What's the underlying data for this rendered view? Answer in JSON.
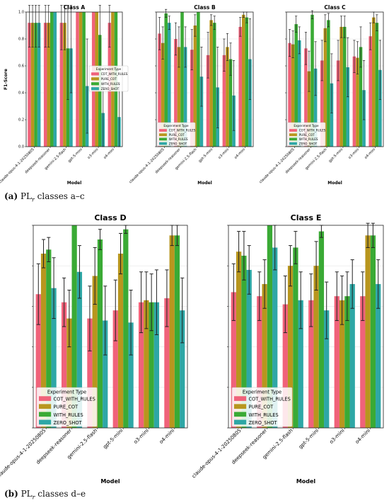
{
  "captions": {
    "a_label": "(a)",
    "a_text": "PL",
    "a_sub": "r",
    "a_rest": " classes a–c",
    "b_label": "(b)",
    "b_text": "PL",
    "b_sub": "r",
    "b_rest": " classes d–e"
  },
  "legend": {
    "title": "Experiment Type",
    "entries": [
      "COT_WITH_RULES",
      "PURE_COT",
      "WITH_RULES",
      "ZERO_SHOT"
    ]
  },
  "colors": {
    "COT_WITH_RULES": "#f0627a",
    "PURE_COT": "#b8961e",
    "WITH_RULES": "#3aaa35",
    "ZERO_SHOT": "#2ea7a6"
  },
  "chart_data": [
    {
      "type": "bar",
      "title": "Class A",
      "xlabel": "Model",
      "ylabel": "F1-Score",
      "ylim": [
        0,
        1.0
      ],
      "yticks": [
        "0.0",
        "0.2",
        "0.4",
        "0.6",
        "0.8",
        "1.0"
      ],
      "grid": true,
      "legend_position": "center-right",
      "categories": [
        "claude-opus-4-1-20250805",
        "deepseek-reasoner",
        "gemini-2.5-flash",
        "gpt-5-mini",
        "o3-mini",
        "o4-mini"
      ],
      "series": [
        {
          "name": "COT_WITH_RULES",
          "values": [
            0.92,
            0.92,
            0.92,
            1.0,
            1.0,
            0.92
          ],
          "err": [
            0.18,
            0.18,
            0.2,
            0.0,
            0.0,
            0.18
          ]
        },
        {
          "name": "PURE_COT",
          "values": [
            0.92,
            0.92,
            0.92,
            1.0,
            1.0,
            1.0
          ],
          "err": [
            0.18,
            0.18,
            0.2,
            0.0,
            0.0,
            0.0
          ]
        },
        {
          "name": "WITH_RULES",
          "values": [
            0.92,
            1.0,
            0.73,
            1.0,
            0.83,
            1.0
          ],
          "err": [
            0.18,
            0.0,
            0.38,
            0.0,
            0.25,
            0.0
          ]
        },
        {
          "name": "ZERO_SHOT",
          "values": [
            0.92,
            1.0,
            0.73,
            0.45,
            0.25,
            0.22
          ],
          "err": [
            0.18,
            0.0,
            0.33,
            0.35,
            0.3,
            0.25
          ]
        }
      ]
    },
    {
      "type": "bar",
      "title": "Class B",
      "xlabel": "Model",
      "ylabel": "",
      "ylim": [
        0,
        1.0
      ],
      "yticks": [],
      "grid": true,
      "legend_position": "lower-left",
      "categories": [
        "claude-opus-4-1-20250805",
        "deepseek-reasoner",
        "gemini-2.5-flash",
        "gpt-5-mini",
        "o3-mini",
        "o4-mini"
      ],
      "series": [
        {
          "name": "COT_WITH_RULES",
          "values": [
            0.84,
            0.8,
            0.72,
            0.68,
            0.68,
            0.89
          ],
          "err": [
            0.12,
            0.12,
            0.15,
            0.17,
            0.12,
            0.07
          ]
        },
        {
          "name": "PURE_COT",
          "values": [
            0.77,
            0.74,
            0.9,
            0.94,
            0.74,
            0.98
          ],
          "err": [
            0.12,
            0.15,
            0.08,
            0.04,
            0.1,
            0.02
          ]
        },
        {
          "name": "WITH_RULES",
          "values": [
            0.99,
            1.0,
            1.0,
            0.92,
            0.65,
            0.96
          ],
          "err": [
            0.03,
            0.0,
            0.0,
            0.05,
            0.12,
            0.04
          ]
        },
        {
          "name": "ZERO_SHOT",
          "values": [
            0.92,
            0.74,
            0.52,
            0.44,
            0.38,
            0.65
          ],
          "err": [
            0.05,
            0.15,
            0.22,
            0.3,
            0.26,
            0.3
          ]
        }
      ]
    },
    {
      "type": "bar",
      "title": "Class C",
      "xlabel": "Model",
      "ylabel": "",
      "ylim": [
        0,
        1.0
      ],
      "yticks": [],
      "grid": true,
      "legend_position": "lower-left",
      "categories": [
        "claude-opus-4-1-20250805",
        "deepseek-reasoner",
        "gemini-2.5-flash",
        "gpt-5-mini",
        "o3-mini",
        "o4-mini"
      ],
      "series": [
        {
          "name": "COT_WITH_RULES",
          "values": [
            0.77,
            0.73,
            0.64,
            0.64,
            0.67,
            0.82
          ],
          "err": [
            0.1,
            0.12,
            0.15,
            0.15,
            0.12,
            0.1
          ]
        },
        {
          "name": "PURE_COT",
          "values": [
            0.76,
            0.56,
            0.88,
            0.89,
            0.66,
            0.96
          ],
          "err": [
            0.1,
            0.15,
            0.1,
            0.08,
            0.12,
            0.04
          ]
        },
        {
          "name": "WITH_RULES",
          "values": [
            0.91,
            0.98,
            0.94,
            0.89,
            0.74,
            0.92
          ],
          "err": [
            0.06,
            0.03,
            0.05,
            0.08,
            0.15,
            0.06
          ]
        },
        {
          "name": "ZERO_SHOT",
          "values": [
            0.79,
            0.58,
            0.47,
            0.59,
            0.42,
            0.57
          ],
          "err": [
            0.1,
            0.2,
            0.22,
            0.22,
            0.22,
            0.22
          ]
        }
      ]
    },
    {
      "type": "bar",
      "title": "Class D",
      "xlabel": "Model",
      "ylabel": "",
      "ylim": [
        0,
        1.0
      ],
      "yticks": [],
      "grid": true,
      "legend_position": "lower-left",
      "categories": [
        "claude-opus-4-1-20250805",
        "deepseek-reasoner",
        "gemini-2.5-flash",
        "gpt-5-mini",
        "o3-mini",
        "o4-mini"
      ],
      "series": [
        {
          "name": "COT_WITH_RULES",
          "values": [
            0.66,
            0.62,
            0.54,
            0.58,
            0.62,
            0.64
          ],
          "err": [
            0.15,
            0.12,
            0.16,
            0.15,
            0.15,
            0.14
          ]
        },
        {
          "name": "PURE_COT",
          "values": [
            0.86,
            0.54,
            0.75,
            0.86,
            0.63,
            0.95
          ],
          "err": [
            0.07,
            0.14,
            0.14,
            0.1,
            0.14,
            0.05
          ]
        },
        {
          "name": "WITH_RULES",
          "values": [
            0.88,
            1.0,
            0.93,
            0.98,
            0.62,
            0.95
          ],
          "err": [
            0.06,
            0.0,
            0.05,
            0.02,
            0.14,
            0.05
          ]
        },
        {
          "name": "ZERO_SHOT",
          "values": [
            0.69,
            0.77,
            0.53,
            0.52,
            0.62,
            0.58
          ],
          "err": [
            0.15,
            0.13,
            0.17,
            0.16,
            0.16,
            0.16
          ]
        }
      ]
    },
    {
      "type": "bar",
      "title": "Class E",
      "xlabel": "Model",
      "ylabel": "",
      "ylim": [
        0,
        1.0
      ],
      "yticks": [],
      "grid": true,
      "legend_position": "lower-left",
      "categories": [
        "claude-opus-4-1-20250805",
        "deepseek-reasoner",
        "gemini-2.5-flash",
        "gpt-5-mini",
        "o3-mini",
        "o4-mini"
      ],
      "series": [
        {
          "name": "COT_WITH_RULES",
          "values": [
            0.67,
            0.65,
            0.61,
            0.63,
            0.65,
            0.65
          ],
          "err": [
            0.14,
            0.12,
            0.14,
            0.13,
            0.12,
            0.12
          ]
        },
        {
          "name": "PURE_COT",
          "values": [
            0.87,
            0.71,
            0.8,
            0.8,
            0.63,
            0.95
          ],
          "err": [
            0.1,
            0.12,
            0.1,
            0.12,
            0.12,
            0.06
          ]
        },
        {
          "name": "WITH_RULES",
          "values": [
            0.85,
            1.0,
            0.89,
            0.97,
            0.65,
            0.95
          ],
          "err": [
            0.12,
            0.0,
            0.08,
            0.03,
            0.12,
            0.06
          ]
        },
        {
          "name": "ZERO_SHOT",
          "values": [
            0.78,
            0.89,
            0.63,
            0.58,
            0.71,
            0.71
          ],
          "err": [
            0.12,
            0.11,
            0.14,
            0.14,
            0.12,
            0.12
          ]
        }
      ]
    }
  ]
}
